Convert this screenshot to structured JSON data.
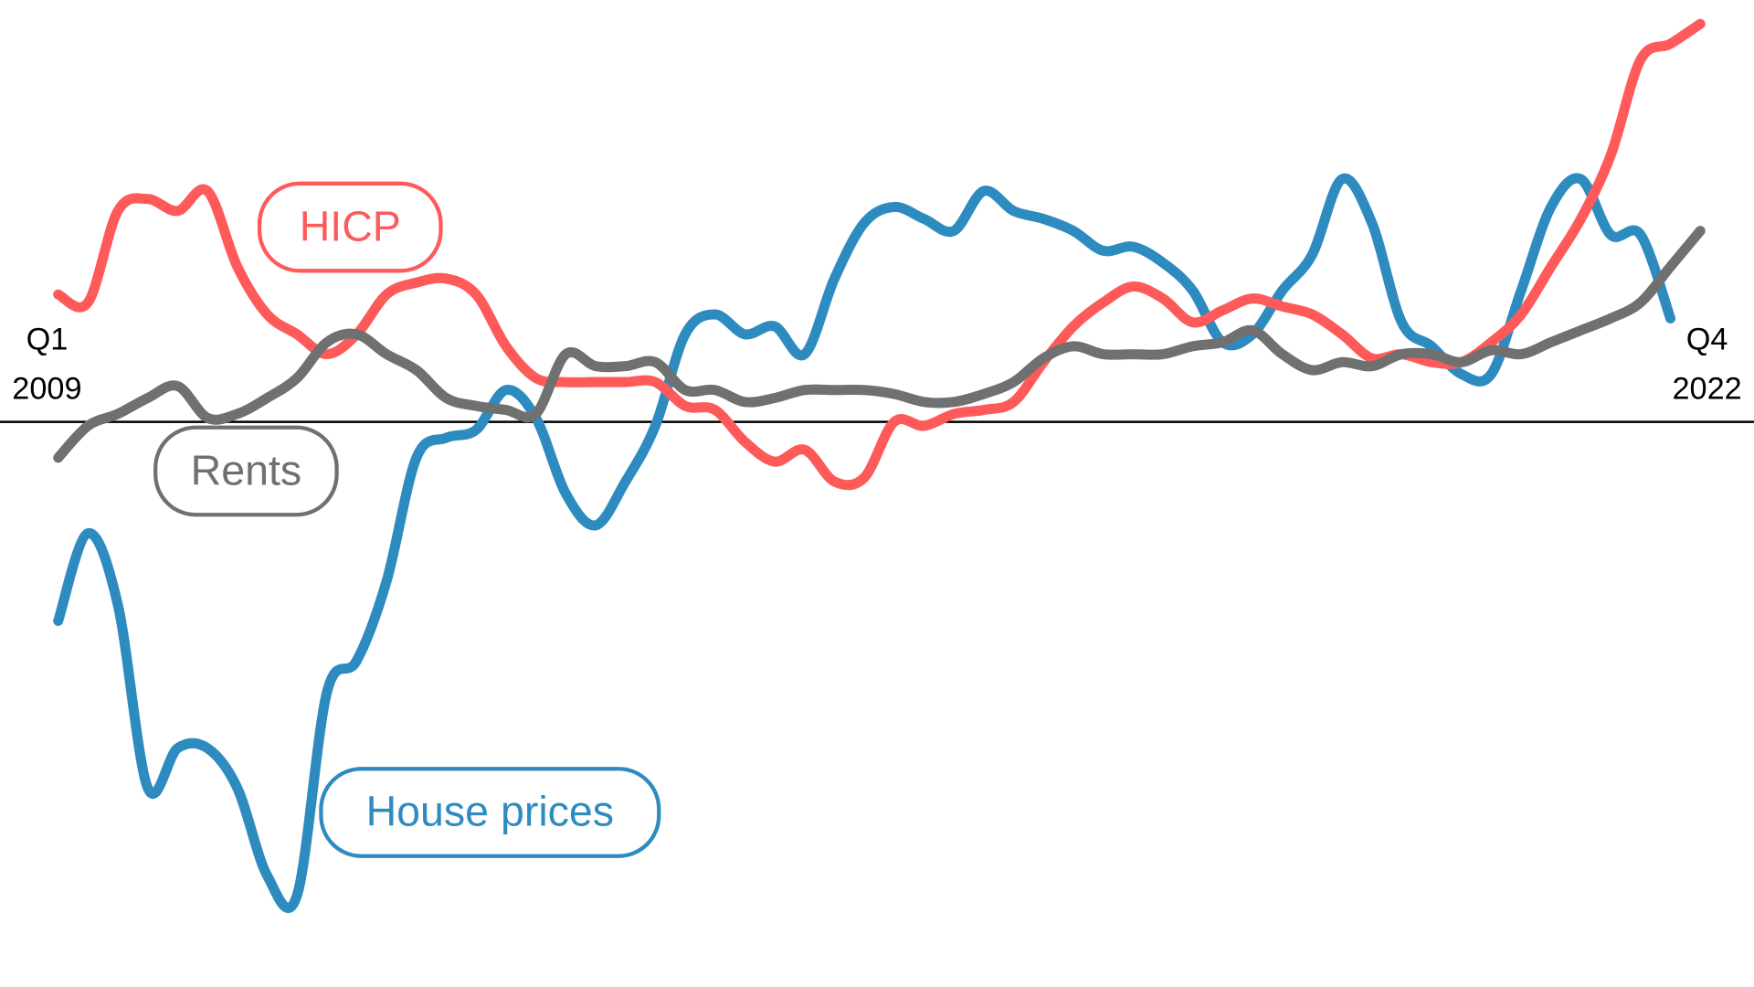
{
  "chart_data": {
    "type": "line",
    "categories": [
      "Q1 2009",
      null,
      null,
      null,
      null,
      null,
      null,
      null,
      null,
      null,
      null,
      null,
      null,
      null,
      null,
      null,
      null,
      null,
      null,
      null,
      null,
      null,
      null,
      null,
      null,
      null,
      null,
      null,
      null,
      null,
      null,
      null,
      null,
      null,
      null,
      null,
      null,
      null,
      null,
      null,
      null,
      null,
      null,
      null,
      null,
      null,
      null,
      null,
      null,
      null,
      null,
      null,
      null,
      null,
      null,
      "Q4 2022"
    ],
    "series": [
      {
        "name": "HICP",
        "color": "#ff5a5a",
        "values": [
          3.2,
          3.0,
          5.3,
          5.6,
          5.3,
          5.8,
          3.9,
          2.7,
          2.2,
          1.7,
          2.2,
          3.2,
          3.5,
          3.6,
          3.2,
          1.9,
          1.1,
          1.0,
          1.0,
          1.0,
          1.0,
          0.4,
          0.3,
          -0.5,
          -1.0,
          -0.7,
          -1.5,
          -1.4,
          0.0,
          -0.1,
          0.2,
          0.3,
          0.5,
          1.5,
          2.4,
          3.0,
          3.4,
          3.1,
          2.5,
          2.8,
          3.1,
          2.9,
          2.7,
          2.2,
          1.6,
          1.7,
          1.5,
          1.5,
          2.0,
          2.7,
          3.9,
          5.1,
          6.7,
          9.1,
          9.5,
          10.0
        ]
      },
      {
        "name": "Rents",
        "color": "#707070",
        "values": [
          -0.9,
          -0.1,
          0.2,
          0.6,
          0.9,
          0.1,
          0.2,
          0.6,
          1.1,
          2.0,
          2.2,
          1.7,
          1.3,
          0.6,
          0.4,
          0.3,
          0.2,
          1.7,
          1.4,
          1.4,
          1.5,
          0.8,
          0.8,
          0.5,
          0.6,
          0.8,
          0.8,
          0.8,
          0.7,
          0.5,
          0.5,
          0.7,
          1.0,
          1.6,
          1.9,
          1.7,
          1.7,
          1.7,
          1.9,
          2.0,
          2.3,
          1.7,
          1.3,
          1.5,
          1.4,
          1.7,
          1.7,
          1.5,
          1.8,
          1.7,
          2.0,
          2.3,
          2.6,
          3.0,
          3.9,
          4.8
        ]
      },
      {
        "name": "House prices",
        "color": "#2e8bc0",
        "values": [
          -5.0,
          -2.8,
          -4.6,
          -9.2,
          -8.2,
          -8.2,
          -9.2,
          -11.4,
          -11.9,
          -6.8,
          -6.0,
          -4.0,
          -0.9,
          -0.4,
          -0.2,
          0.8,
          0.1,
          -1.8,
          -2.6,
          -1.5,
          -0.1,
          2.2,
          2.7,
          2.2,
          2.4,
          1.7,
          3.6,
          5.0,
          5.4,
          5.1,
          4.8,
          5.8,
          5.3,
          5.1,
          4.8,
          4.3,
          4.4,
          4.0,
          3.3,
          2.0,
          2.2,
          3.3,
          4.2,
          6.1,
          5.0,
          2.5,
          1.9,
          1.2,
          1.2,
          3.3,
          5.4,
          6.1,
          4.7,
          4.7,
          2.6,
          null
        ]
      }
    ],
    "ylim": [
      -14.2,
      10.6
    ],
    "reference_line": 0
  }
}
